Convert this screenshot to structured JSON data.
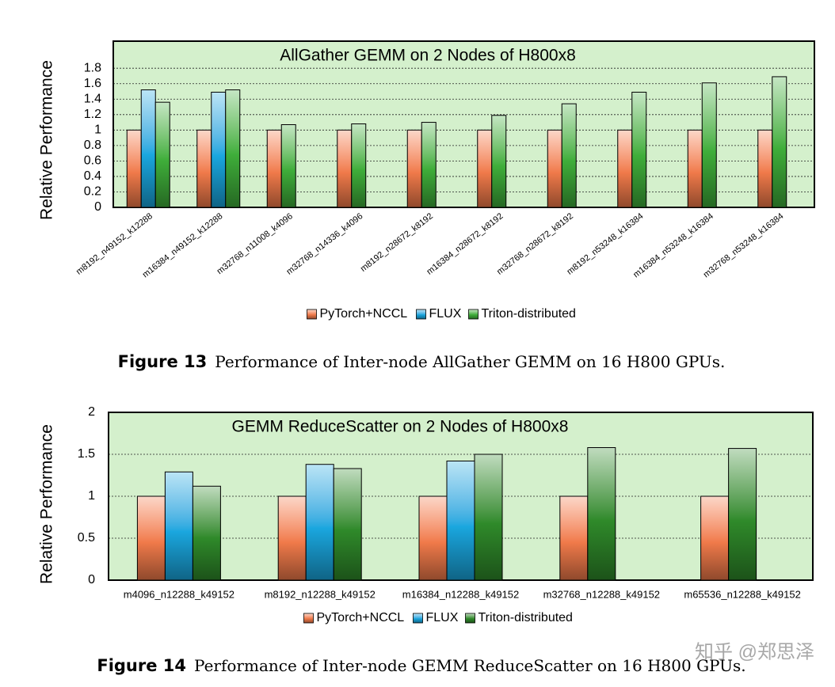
{
  "chart_data": [
    {
      "type": "bar",
      "title": "AllGather GEMM on 2 Nodes of H800x8",
      "y_label": "Relative Performance",
      "categories": [
        "m8192_n49152_k12288",
        "m16384_n49152_k12288",
        "m32768_n11008_k4096",
        "m32768_n14336_k4096",
        "m8192_n28672_k8192",
        "m16384_n28672_k8192",
        "m32768_n28672_k8192",
        "m8192_n53248_k16384",
        "m16384_n53248_k16384",
        "m32768_n53248_k16384"
      ],
      "series": [
        {
          "name": "PyTorch+NCCL",
          "color": "#f07a4a",
          "values": [
            1,
            1,
            1,
            1,
            1,
            1,
            1,
            1,
            1,
            1
          ]
        },
        {
          "name": "FLUX",
          "color": "#1aa7df",
          "values": [
            1.52,
            1.49,
            null,
            null,
            null,
            null,
            null,
            null,
            null,
            null
          ]
        },
        {
          "name": "Triton-distributed",
          "color": "#3fae3a",
          "values": [
            1.36,
            1.52,
            1.07,
            1.08,
            1.1,
            1.19,
            1.34,
            1.49,
            1.61,
            1.69
          ]
        }
      ],
      "ylim": [
        0,
        2.15
      ],
      "yticks": [
        0,
        0.2,
        0.4,
        0.6,
        0.8,
        1,
        1.2,
        1.4,
        1.6,
        1.8
      ],
      "grid": true,
      "legend": "bottom"
    },
    {
      "type": "bar",
      "title": "GEMM ReduceScatter on 2 Nodes of H800x8",
      "y_label": "Relative Performance",
      "categories": [
        "m4096_n12288_k49152",
        "m8192_n12288_k49152",
        "m16384_n12288_k49152",
        "m32768_n12288_k49152",
        "m65536_n12288_k49152"
      ],
      "series": [
        {
          "name": "PyTorch+NCCL",
          "color": "#f07a4a",
          "values": [
            1,
            1,
            1,
            1,
            1
          ]
        },
        {
          "name": "FLUX",
          "color": "#1aa7df",
          "values": [
            1.29,
            1.38,
            1.42,
            null,
            null
          ]
        },
        {
          "name": "Triton-distributed",
          "color": "#2f8a2a",
          "values": [
            1.12,
            1.33,
            1.5,
            1.58,
            1.57
          ]
        }
      ],
      "ylim": [
        0,
        2
      ],
      "yticks": [
        0,
        0.5,
        1,
        1.5,
        2
      ],
      "grid": true,
      "legend": "bottom"
    }
  ],
  "captions": [
    {
      "label": "Figure 13",
      "text": "Performance of Inter-node AllGather GEMM on 16 H800 GPUs."
    },
    {
      "label": "Figure 14",
      "text": "Performance of Inter-node GEMM ReduceScatter on 16 H800 GPUs."
    }
  ],
  "watermark": "知乎 @郑思泽"
}
